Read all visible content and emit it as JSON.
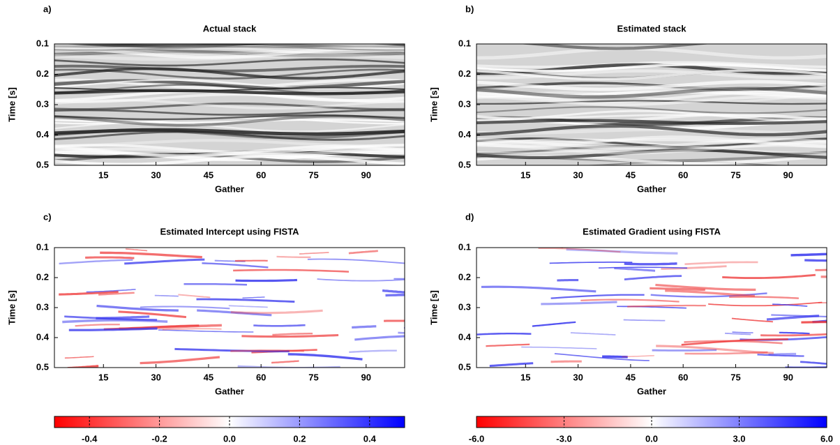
{
  "chart_data": [
    {
      "type": "heatmap",
      "panel_label": "a)",
      "title": "Actual stack",
      "xlabel": "Gather",
      "ylabel": "Time [s]",
      "xlim": [
        1,
        101
      ],
      "xticks": [
        15,
        30,
        45,
        60,
        75,
        90
      ],
      "ylim": [
        0.1,
        0.5
      ],
      "yticks": [
        0.1,
        0.2,
        0.3,
        0.4,
        0.5
      ],
      "colormap": "gray"
    },
    {
      "type": "heatmap",
      "panel_label": "b)",
      "title": "Estimated stack",
      "xlabel": "Gather",
      "ylabel": "Time [s]",
      "xlim": [
        1,
        101
      ],
      "xticks": [
        15,
        30,
        45,
        60,
        75,
        90
      ],
      "ylim": [
        0.1,
        0.5
      ],
      "yticks": [
        0.1,
        0.2,
        0.3,
        0.4,
        0.5
      ],
      "colormap": "gray"
    },
    {
      "type": "heatmap",
      "panel_label": "c)",
      "title": "Estimated Intercept using FISTA",
      "xlabel": "Gather",
      "ylabel": "Time [s]",
      "xlim": [
        1,
        101
      ],
      "xticks": [
        15,
        30,
        45,
        60,
        75,
        90
      ],
      "ylim": [
        0.1,
        0.5
      ],
      "yticks": [
        0.1,
        0.2,
        0.3,
        0.4,
        0.5
      ],
      "colormap": "bwr",
      "colorbar": {
        "range": [
          -0.5,
          0.5
        ],
        "ticks": [
          -0.4,
          -0.2,
          {
            "value": 0,
            "label": "0.0"
          },
          0.2,
          0.4
        ]
      }
    },
    {
      "type": "heatmap",
      "panel_label": "d)",
      "title": "Estimated Gradient using FISTA",
      "xlabel": "Gather",
      "ylabel": "Time [s]",
      "xlim": [
        1,
        101
      ],
      "xticks": [
        15,
        30,
        45,
        60,
        75,
        90
      ],
      "ylim": [
        0.1,
        0.5
      ],
      "yticks": [
        0.1,
        0.2,
        0.3,
        0.4,
        0.5
      ],
      "colormap": "bwr",
      "colorbar": {
        "range": [
          -6,
          6
        ],
        "ticks": [
          {
            "value": -6,
            "label": "-6.0"
          },
          {
            "value": -3,
            "label": "-3.0"
          },
          {
            "value": 0,
            "label": "0.0"
          },
          {
            "value": 3,
            "label": "3.0"
          },
          {
            "value": 6,
            "label": "6.0"
          }
        ]
      }
    }
  ]
}
